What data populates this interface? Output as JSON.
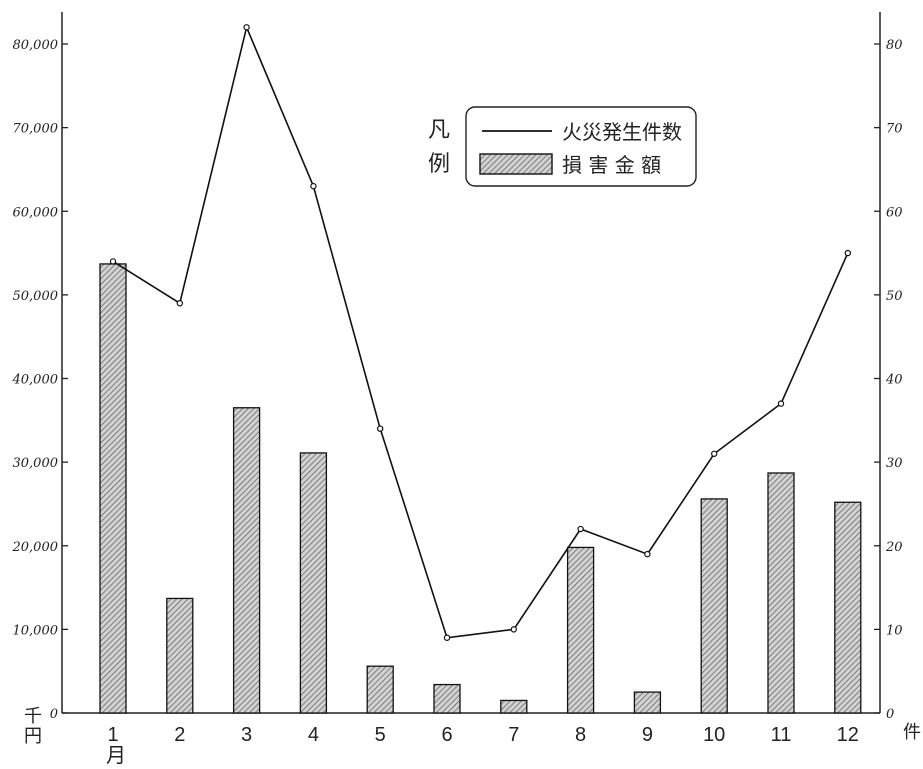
{
  "chart_data": {
    "type": "bar",
    "categories": [
      "1",
      "2",
      "3",
      "4",
      "5",
      "6",
      "7",
      "8",
      "9",
      "10",
      "11",
      "12"
    ],
    "x_axis_suffix": "月",
    "series": [
      {
        "name": "損害金額",
        "kind": "bar",
        "axis": "left",
        "values": [
          53700,
          13700,
          36500,
          31100,
          5600,
          3400,
          1500,
          19800,
          2500,
          25600,
          28700,
          25200
        ]
      },
      {
        "name": "火災発生件数",
        "kind": "line",
        "axis": "right",
        "values": [
          54,
          49,
          82,
          63,
          34,
          9,
          10,
          22,
          19,
          31,
          37,
          55
        ]
      }
    ],
    "y_left": {
      "unit_label": "千円",
      "ylim": [
        0,
        82000
      ],
      "ticks": [
        0,
        10000,
        20000,
        30000,
        40000,
        50000,
        60000,
        70000,
        80000
      ],
      "tick_labels": [
        "0",
        "10,000",
        "20,000",
        "30,000",
        "40,000",
        "50,000",
        "60,000",
        "70,000",
        "80,000"
      ]
    },
    "y_right": {
      "unit_label": "件",
      "ylim": [
        0,
        82
      ],
      "ticks": [
        0,
        10,
        20,
        30,
        40,
        50,
        60,
        70,
        80
      ],
      "tick_labels": [
        "0",
        "10",
        "20",
        "30",
        "40",
        "50",
        "60",
        "70",
        "80"
      ]
    },
    "legend": {
      "title_line1": "凡",
      "title_line2": "例",
      "placement": "top-right",
      "line_label": "火災発生件数",
      "bar_label": "損 害 金 額"
    },
    "grid": false,
    "colors": {
      "bar_fill": "#d0d0d0",
      "bar_hatch": "#555555",
      "line": "#111111",
      "axis": "#222222"
    }
  }
}
